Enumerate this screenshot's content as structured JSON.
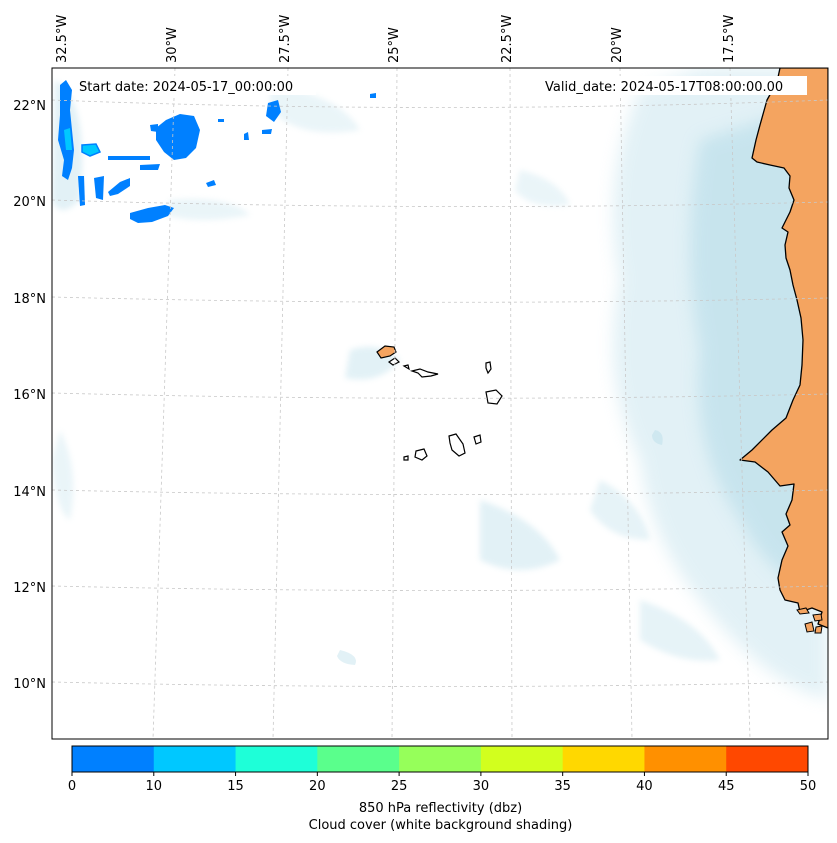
{
  "map": {
    "lon_labels": [
      "32.5°W",
      "30°W",
      "27.5°W",
      "25°W",
      "22.5°W",
      "20°W",
      "17.5°W"
    ],
    "lat_labels": [
      "22°N",
      "20°N",
      "18°N",
      "16°N",
      "14°N",
      "12°N",
      "10°N"
    ],
    "start_date": "Start date: 2024-05-17_00:00:00",
    "valid_date": "Valid_date: 2024-05-17T08:00:00.00",
    "land_color": "#f4a460",
    "ocean_color": "#ffffff",
    "cloud_color": "#add8e6",
    "coastline_color": "#000000"
  },
  "colorbar": {
    "ticks": [
      "0",
      "10",
      "15",
      "20",
      "25",
      "30",
      "35",
      "40",
      "45",
      "50"
    ],
    "colors": [
      "#0080ff",
      "#00c8ff",
      "#1effd8",
      "#5aff8c",
      "#96ff5a",
      "#d2ff1e",
      "#ffd800",
      "#ff9000",
      "#ff4800"
    ],
    "label": "850 hPa reflectivity (dbz)",
    "sublabel": "Cloud cover (white background shading)"
  }
}
